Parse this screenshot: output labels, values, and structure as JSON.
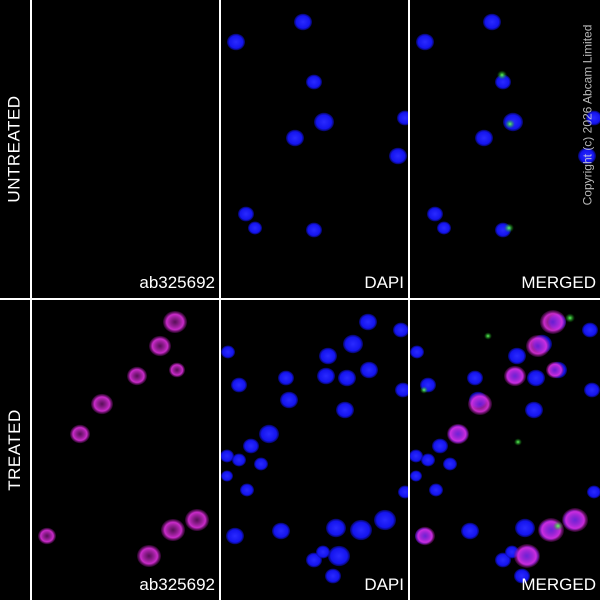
{
  "figure": {
    "rows": [
      {
        "label": "UNTREATED",
        "panels": [
          {
            "label": "ab325692",
            "channel": "magenta",
            "cells": []
          },
          {
            "label": "DAPI",
            "channel": "blue",
            "cells": [
              [
                15,
                42,
                9
              ],
              [
                82,
                22,
                9
              ],
              [
                93,
                82,
                8
              ],
              [
                103,
                122,
                10
              ],
              [
                74,
                138,
                9
              ],
              [
                184,
                118,
                8
              ],
              [
                177,
                156,
                9
              ],
              [
                25,
                214,
                8
              ],
              [
                34,
                228,
                7
              ],
              [
                93,
                230,
                8
              ]
            ]
          },
          {
            "label": "MERGED",
            "channel": "merged",
            "cells": [
              [
                15,
                42,
                9
              ],
              [
                82,
                22,
                9
              ],
              [
                93,
                82,
                8
              ],
              [
                103,
                122,
                10
              ],
              [
                74,
                138,
                9
              ],
              [
                184,
                118,
                8
              ],
              [
                177,
                156,
                9
              ],
              [
                25,
                214,
                8
              ],
              [
                34,
                228,
                7
              ],
              [
                93,
                230,
                8
              ]
            ],
            "green": [
              [
                92,
                75,
                3
              ],
              [
                100,
                124,
                3
              ],
              [
                99,
                228,
                3
              ]
            ]
          }
        ]
      },
      {
        "label": "TREATED",
        "panels": [
          {
            "label": "ab325692",
            "channel": "magenta",
            "cells": [
              [
                143,
                22,
                12
              ],
              [
                128,
                46,
                11
              ],
              [
                105,
                76,
                10
              ],
              [
                145,
                70,
                8
              ],
              [
                70,
                104,
                11
              ],
              [
                48,
                134,
                10
              ],
              [
                15,
                236,
                9
              ],
              [
                141,
                230,
                12
              ],
              [
                165,
                220,
                12
              ],
              [
                117,
                256,
                12
              ]
            ]
          },
          {
            "label": "DAPI",
            "channel": "blue",
            "cells": [
              [
                147,
                22,
                9
              ],
              [
                180,
                30,
                8
              ],
              [
                132,
                44,
                10
              ],
              [
                107,
                56,
                9
              ],
              [
                7,
                52,
                7
              ],
              [
                18,
                85,
                8
              ],
              [
                65,
                78,
                8
              ],
              [
                105,
                76,
                9
              ],
              [
                126,
                78,
                9
              ],
              [
                148,
                70,
                9
              ],
              [
                182,
                90,
                8
              ],
              [
                68,
                100,
                9
              ],
              [
                124,
                110,
                9
              ],
              [
                48,
                134,
                10
              ],
              [
                30,
                146,
                8
              ],
              [
                6,
                156,
                7
              ],
              [
                18,
                160,
                7
              ],
              [
                40,
                164,
                7
              ],
              [
                26,
                190,
                7
              ],
              [
                6,
                176,
                6
              ],
              [
                14,
                236,
                9
              ],
              [
                60,
                231,
                9
              ],
              [
                115,
                228,
                10
              ],
              [
                140,
                230,
                11
              ],
              [
                164,
                220,
                11
              ],
              [
                118,
                256,
                11
              ],
              [
                93,
                260,
                8
              ],
              [
                112,
                276,
                8
              ],
              [
                102,
                252,
                7
              ],
              [
                184,
                192,
                7
              ]
            ]
          },
          {
            "label": "MERGED",
            "channel": "merged",
            "cells": [
              [
                147,
                22,
                9
              ],
              [
                180,
                30,
                8
              ],
              [
                132,
                44,
                10
              ],
              [
                107,
                56,
                9
              ],
              [
                7,
                52,
                7
              ],
              [
                18,
                85,
                8
              ],
              [
                65,
                78,
                8
              ],
              [
                105,
                76,
                9
              ],
              [
                126,
                78,
                9
              ],
              [
                148,
                70,
                9
              ],
              [
                182,
                90,
                8
              ],
              [
                68,
                100,
                9
              ],
              [
                124,
                110,
                9
              ],
              [
                48,
                134,
                10
              ],
              [
                30,
                146,
                8
              ],
              [
                6,
                156,
                7
              ],
              [
                18,
                160,
                7
              ],
              [
                40,
                164,
                7
              ],
              [
                26,
                190,
                7
              ],
              [
                6,
                176,
                6
              ],
              [
                14,
                236,
                9
              ],
              [
                60,
                231,
                9
              ],
              [
                115,
                228,
                10
              ],
              [
                140,
                230,
                11
              ],
              [
                164,
                220,
                11
              ],
              [
                118,
                256,
                11
              ],
              [
                93,
                260,
                8
              ],
              [
                112,
                276,
                8
              ],
              [
                102,
                252,
                7
              ],
              [
                184,
                192,
                7
              ]
            ],
            "magenta": [
              [
                143,
                22,
                12
              ],
              [
                128,
                46,
                11
              ],
              [
                105,
                76,
                10
              ],
              [
                145,
                70,
                8
              ],
              [
                70,
                104,
                11
              ],
              [
                48,
                134,
                10
              ],
              [
                15,
                236,
                9
              ],
              [
                141,
                230,
                12
              ],
              [
                165,
                220,
                12
              ],
              [
                117,
                256,
                12
              ]
            ],
            "green": [
              [
                160,
                18,
                3
              ],
              [
                78,
                36,
                2
              ],
              [
                14,
                90,
                2
              ],
              [
                148,
                226,
                3
              ],
              [
                108,
                142,
                2
              ]
            ]
          }
        ]
      }
    ],
    "copyright": "Copyright (c) 2026 Abcam Limited",
    "colors": {
      "blue": "#1a1aff",
      "magenta": "#e030e0",
      "green": "#30ff30",
      "divider": "#ffffff"
    }
  }
}
